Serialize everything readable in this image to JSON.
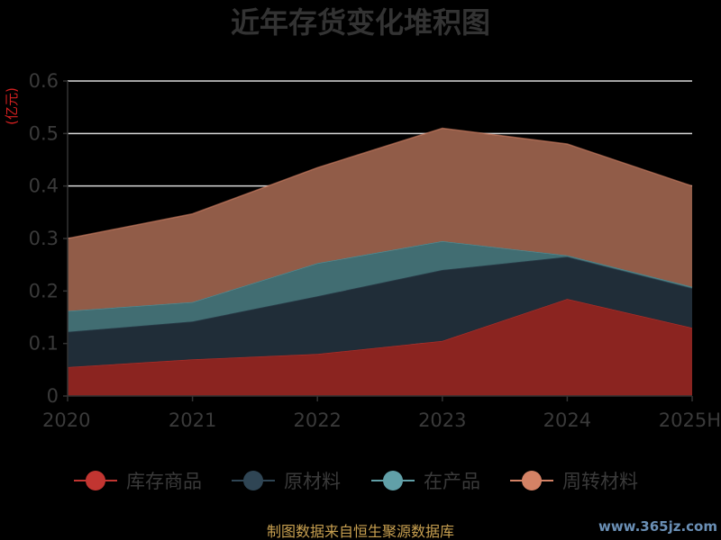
{
  "chart_data": {
    "type": "area",
    "stacked": true,
    "title": "近年存货变化堆积图",
    "ylabel": "(亿元)",
    "xlabel": "",
    "categories": [
      "2020",
      "2021",
      "2022",
      "2023",
      "2024",
      "2025H"
    ],
    "y_ticks": [
      "0",
      "0.1",
      "0.2",
      "0.3",
      "0.4",
      "0.5",
      "0.6"
    ],
    "ylim": [
      0,
      0.6
    ],
    "grid": true,
    "legend_position": "bottom",
    "series": [
      {
        "name": "库存商品",
        "color": "#c23531",
        "fill": "#8b2420",
        "values": [
          0.055,
          0.07,
          0.08,
          0.105,
          0.185,
          0.13
        ]
      },
      {
        "name": "原材料",
        "color": "#2f4554",
        "fill": "#202d38",
        "values": [
          0.067,
          0.072,
          0.11,
          0.135,
          0.08,
          0.075
        ]
      },
      {
        "name": "在产品",
        "color": "#61a0a8",
        "fill": "#416d72",
        "values": [
          0.04,
          0.037,
          0.063,
          0.055,
          0.003,
          0.003
        ]
      },
      {
        "name": "周转材料",
        "color": "#d48265",
        "fill": "#915c48",
        "values": [
          0.138,
          0.168,
          0.182,
          0.215,
          0.212,
          0.192
        ]
      }
    ]
  },
  "footer": {
    "source": "制图数据来自恒生聚源数据库",
    "watermark": "www.365jz.com"
  }
}
